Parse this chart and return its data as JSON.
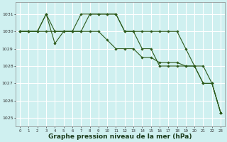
{
  "background_color": "#cff0f0",
  "plot_bg_color": "#cff0f0",
  "grid_color": "#ffffff",
  "line_color": "#2d5a1b",
  "marker_color": "#2d5a1b",
  "xlabel": "Graphe pression niveau de la mer (hPa)",
  "xlabel_fontsize": 6.5,
  "xlabel_bold": true,
  "yticks": [
    1025,
    1026,
    1027,
    1028,
    1029,
    1030,
    1031
  ],
  "xticks": [
    0,
    1,
    2,
    3,
    4,
    5,
    6,
    7,
    8,
    9,
    10,
    11,
    12,
    13,
    14,
    15,
    16,
    17,
    18,
    19,
    20,
    21,
    22,
    23
  ],
  "xlim": [
    -0.5,
    23.5
  ],
  "ylim": [
    1024.5,
    1031.7
  ],
  "series": [
    [
      1030,
      1030,
      1030,
      1031,
      1029.3,
      1030,
      1030,
      1030,
      1031,
      1031,
      1031,
      1031,
      1030,
      1030,
      1030,
      1030,
      1030,
      1030,
      1030,
      1029,
      1028,
      1028,
      1027,
      1025.3
    ],
    [
      1030,
      1030,
      1030,
      1030,
      1030,
      1030,
      1030,
      1030,
      1030,
      1030,
      1029.5,
      1029,
      1029,
      1029,
      1028.5,
      1028.5,
      1028.2,
      1028.2,
      1028.2,
      1028,
      1028,
      1027,
      1027,
      1025.3
    ],
    [
      1030,
      1030,
      1030,
      1031,
      1030,
      1030,
      1030,
      1031,
      1031,
      1031,
      1031,
      1031,
      1030,
      1030,
      1029,
      1029,
      1028,
      1028,
      1028,
      1028,
      1028,
      1027,
      1027,
      1025.3
    ]
  ]
}
